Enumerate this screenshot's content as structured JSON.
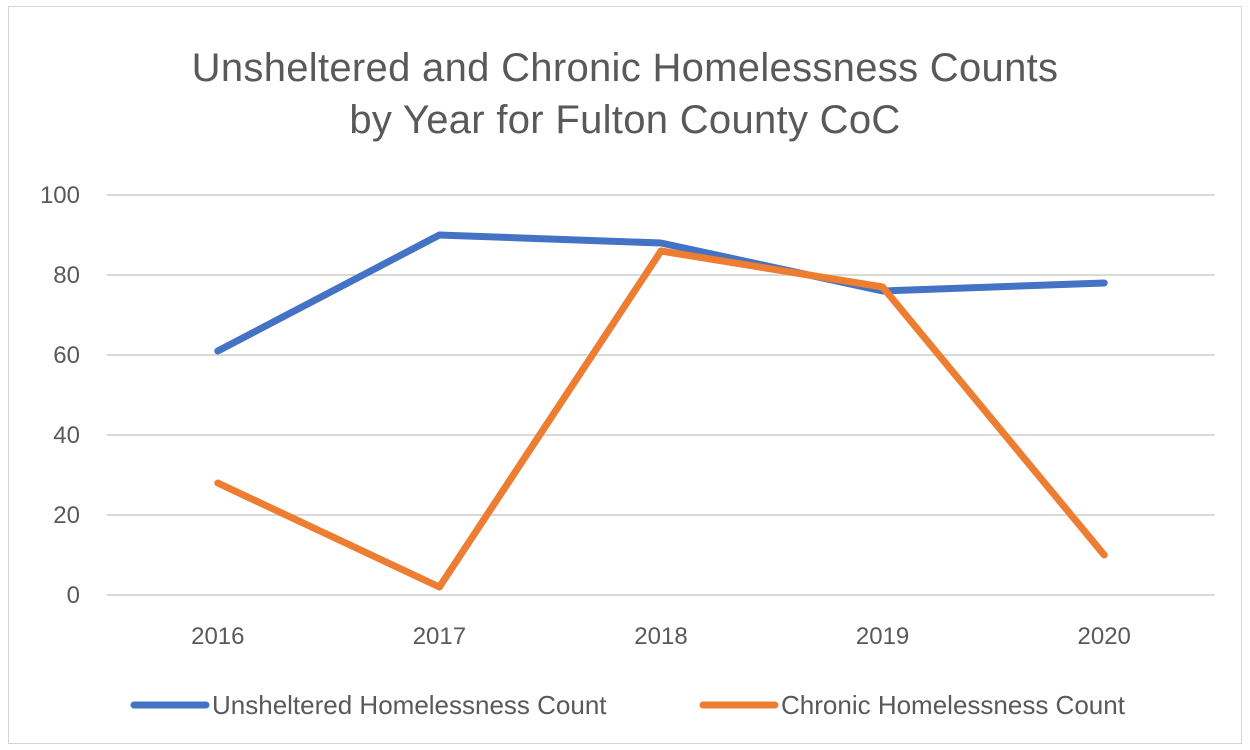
{
  "chart_data": {
    "type": "line",
    "title_lines": [
      "Unsheltered and Chronic Homelessness  Counts",
      "by Year for Fulton County CoC"
    ],
    "xlabel": "",
    "ylabel": "",
    "categories": [
      "2016",
      "2017",
      "2018",
      "2019",
      "2020"
    ],
    "ylim": [
      0,
      100
    ],
    "yticks": [
      0,
      20,
      40,
      60,
      80,
      100
    ],
    "grid": true,
    "legend_position": "bottom",
    "series": [
      {
        "name": "Unsheltered Homelessness Count",
        "color": "#4472c4",
        "values": [
          61,
          90,
          88,
          76,
          78
        ]
      },
      {
        "name": "Chronic Homelessness Count",
        "color": "#ed7d31",
        "values": [
          28,
          2,
          86,
          77,
          10
        ]
      }
    ]
  }
}
